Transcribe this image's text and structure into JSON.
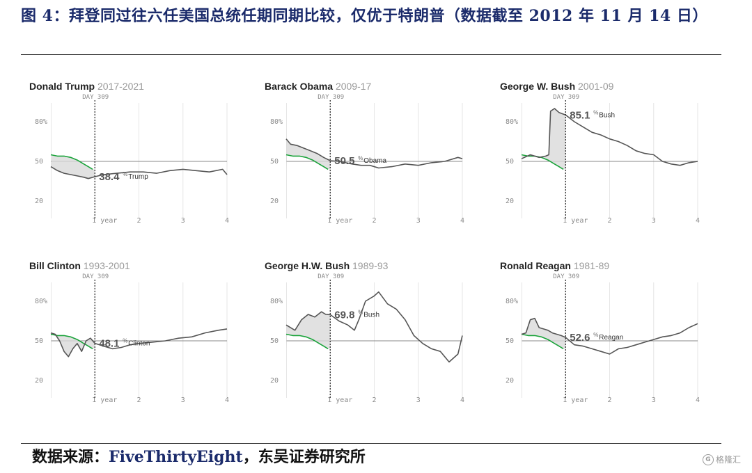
{
  "figure": {
    "title": "图 4：拜登同过往六任美国总统任期同期比较，仅优于特朗普（数据截至 2012 年 11 月 14 日）",
    "source_label": "数据来源：",
    "source_en": "FiveThirtyEight",
    "source_rest": "，东吴证券研究所",
    "watermark": "格隆汇"
  },
  "colors": {
    "approval": "#555555",
    "biden": "#1aa33a",
    "baseline": "#888888",
    "grid": "#e6e6e6",
    "shade": "#d9d9d9"
  },
  "chart_data": [
    {
      "type": "line",
      "name": "Donald Trump",
      "years": "2017-2021",
      "marker_label": "DAY 309",
      "marker_x": 1,
      "xlim": [
        0,
        4
      ],
      "ylim": [
        10,
        90
      ],
      "yticks": [
        "80%",
        "50",
        "20"
      ],
      "ytick_values": [
        80,
        50,
        20
      ],
      "xticks": [
        "1 year",
        "2",
        "3",
        "4"
      ],
      "xtick_values": [
        1,
        2,
        3,
        4
      ],
      "callout_value": "38.4",
      "callout_unit": "%",
      "callout_name": "Trump",
      "series": [
        {
          "name": "Trump",
          "x": [
            0,
            0.15,
            0.3,
            0.45,
            0.6,
            0.75,
            0.85,
            1.0,
            1.2,
            1.5,
            1.8,
            2.1,
            2.4,
            2.7,
            3.0,
            3.3,
            3.6,
            3.9,
            4.0
          ],
          "y": [
            46,
            43,
            41,
            40,
            39,
            38,
            37,
            38.4,
            40,
            41,
            42,
            42,
            41,
            43,
            44,
            43,
            42,
            44,
            40
          ]
        },
        {
          "name": "Biden",
          "x": [
            0,
            0.15,
            0.3,
            0.45,
            0.6,
            0.75,
            0.85,
            0.95
          ],
          "y": [
            55,
            54,
            54,
            53,
            51,
            48,
            46,
            44
          ]
        }
      ]
    },
    {
      "type": "line",
      "name": "Barack Obama",
      "years": "2009-17",
      "marker_label": "DAY 309",
      "marker_x": 1,
      "xlim": [
        0,
        4
      ],
      "ylim": [
        10,
        90
      ],
      "yticks": [
        "80%",
        "50",
        "20"
      ],
      "ytick_values": [
        80,
        50,
        20
      ],
      "xticks": [
        "1 year",
        "2",
        "3",
        "4"
      ],
      "xtick_values": [
        1,
        2,
        3,
        4
      ],
      "callout_value": "50.5",
      "callout_unit": "%",
      "callout_name": "Obama",
      "series": [
        {
          "name": "Obama",
          "x": [
            0,
            0.1,
            0.25,
            0.4,
            0.55,
            0.7,
            0.85,
            1.0,
            1.2,
            1.5,
            1.7,
            1.9,
            2.1,
            2.4,
            2.7,
            3.0,
            3.3,
            3.6,
            3.9,
            4.0
          ],
          "y": [
            67,
            63,
            62,
            60,
            58,
            56,
            53,
            50.5,
            50,
            48,
            47,
            47,
            45,
            46,
            48,
            47,
            49,
            50,
            53,
            52
          ]
        },
        {
          "name": "Biden",
          "x": [
            0,
            0.15,
            0.3,
            0.45,
            0.6,
            0.75,
            0.85,
            0.95
          ],
          "y": [
            55,
            54,
            54,
            53,
            51,
            48,
            46,
            44
          ]
        }
      ]
    },
    {
      "type": "line",
      "name": "George W. Bush",
      "years": "2001-09",
      "marker_label": "DAY 309",
      "marker_x": 1,
      "xlim": [
        0,
        4
      ],
      "ylim": [
        10,
        90
      ],
      "yticks": [
        "80%",
        "50",
        "20"
      ],
      "ytick_values": [
        80,
        50,
        20
      ],
      "xticks": [
        "1 year",
        "2",
        "3",
        "4"
      ],
      "xtick_values": [
        1,
        2,
        3,
        4
      ],
      "callout_value": "85.1",
      "callout_unit": "%",
      "callout_name": "Bush",
      "series": [
        {
          "name": "Bush",
          "x": [
            0,
            0.2,
            0.4,
            0.55,
            0.62,
            0.66,
            0.75,
            0.85,
            1.0,
            1.2,
            1.4,
            1.6,
            1.8,
            2.0,
            2.2,
            2.4,
            2.6,
            2.8,
            3.0,
            3.2,
            3.4,
            3.6,
            3.8,
            4.0
          ],
          "y": [
            52,
            55,
            53,
            54,
            55,
            88,
            90,
            87,
            85.1,
            80,
            76,
            72,
            70,
            67,
            65,
            62,
            58,
            56,
            55,
            50,
            48,
            47,
            49,
            50
          ]
        },
        {
          "name": "Biden",
          "x": [
            0,
            0.15,
            0.3,
            0.45,
            0.6,
            0.75,
            0.85,
            0.95
          ],
          "y": [
            55,
            54,
            54,
            53,
            51,
            48,
            46,
            44
          ]
        }
      ]
    },
    {
      "type": "line",
      "name": "Bill Clinton",
      "years": "1993-2001",
      "marker_label": "DAY 309",
      "marker_x": 1,
      "xlim": [
        0,
        4
      ],
      "ylim": [
        10,
        90
      ],
      "yticks": [
        "80%",
        "50",
        "20"
      ],
      "ytick_values": [
        80,
        50,
        20
      ],
      "xticks": [
        "1 year",
        "2",
        "3",
        "4"
      ],
      "xtick_values": [
        1,
        2,
        3,
        4
      ],
      "callout_value": "48.1",
      "callout_unit": "%",
      "callout_name": "Clinton",
      "series": [
        {
          "name": "Clinton",
          "x": [
            0,
            0.1,
            0.2,
            0.3,
            0.4,
            0.5,
            0.6,
            0.7,
            0.8,
            0.9,
            1.0,
            1.2,
            1.4,
            1.6,
            1.8,
            2.0,
            2.3,
            2.6,
            2.9,
            3.2,
            3.5,
            3.8,
            4.0
          ],
          "y": [
            56,
            55,
            50,
            42,
            38,
            44,
            48,
            42,
            50,
            52,
            48.1,
            46,
            44,
            45,
            47,
            48,
            49,
            50,
            52,
            53,
            56,
            58,
            59
          ]
        },
        {
          "name": "Biden",
          "x": [
            0,
            0.15,
            0.3,
            0.45,
            0.6,
            0.75,
            0.85,
            0.95
          ],
          "y": [
            55,
            54,
            54,
            53,
            51,
            48,
            46,
            44
          ]
        }
      ]
    },
    {
      "type": "line",
      "name": "George H.W. Bush",
      "years": "1989-93",
      "marker_label": "DAY 309",
      "marker_x": 1,
      "xlim": [
        0,
        4
      ],
      "ylim": [
        10,
        90
      ],
      "yticks": [
        "80%",
        "50",
        "20"
      ],
      "ytick_values": [
        80,
        50,
        20
      ],
      "xticks": [
        "1 year",
        "2",
        "3",
        "4"
      ],
      "xtick_values": [
        1,
        2,
        3,
        4
      ],
      "callout_value": "69.8",
      "callout_unit": "%",
      "callout_name": "Bush",
      "series": [
        {
          "name": "Bush",
          "x": [
            0,
            0.2,
            0.35,
            0.5,
            0.65,
            0.8,
            0.9,
            1.0,
            1.2,
            1.4,
            1.55,
            1.65,
            1.8,
            2.0,
            2.1,
            2.3,
            2.5,
            2.7,
            2.9,
            3.1,
            3.3,
            3.5,
            3.7,
            3.9,
            4.0
          ],
          "y": [
            62,
            58,
            66,
            70,
            68,
            72,
            70,
            69.8,
            65,
            62,
            58,
            66,
            80,
            84,
            87,
            78,
            74,
            66,
            54,
            48,
            44,
            42,
            34,
            40,
            54
          ]
        },
        {
          "name": "Biden",
          "x": [
            0,
            0.15,
            0.3,
            0.45,
            0.6,
            0.75,
            0.85,
            0.95
          ],
          "y": [
            55,
            54,
            54,
            53,
            51,
            48,
            46,
            44
          ]
        }
      ]
    },
    {
      "type": "line",
      "name": "Ronald Reagan",
      "years": "1981-89",
      "marker_label": "DAY 309",
      "marker_x": 1,
      "xlim": [
        0,
        4
      ],
      "ylim": [
        10,
        90
      ],
      "yticks": [
        "80%",
        "50",
        "20"
      ],
      "ytick_values": [
        80,
        50,
        20
      ],
      "xticks": [
        "1 year",
        "2",
        "3",
        "4"
      ],
      "xtick_values": [
        1,
        2,
        3,
        4
      ],
      "callout_value": "52.6",
      "callout_unit": "%",
      "callout_name": "Reagan",
      "series": [
        {
          "name": "Reagan",
          "x": [
            0,
            0.1,
            0.2,
            0.3,
            0.4,
            0.5,
            0.6,
            0.7,
            0.8,
            0.9,
            1.0,
            1.2,
            1.4,
            1.6,
            1.8,
            2.0,
            2.2,
            2.4,
            2.6,
            2.8,
            3.0,
            3.2,
            3.4,
            3.6,
            3.8,
            4.0
          ],
          "y": [
            55,
            56,
            66,
            67,
            60,
            59,
            58,
            56,
            55,
            54,
            52.6,
            47,
            46,
            44,
            42,
            40,
            44,
            45,
            47,
            49,
            51,
            53,
            54,
            56,
            60,
            63
          ]
        },
        {
          "name": "Biden",
          "x": [
            0,
            0.15,
            0.3,
            0.45,
            0.6,
            0.75,
            0.85,
            0.95
          ],
          "y": [
            55,
            54,
            54,
            53,
            51,
            48,
            46,
            44
          ]
        }
      ]
    }
  ]
}
